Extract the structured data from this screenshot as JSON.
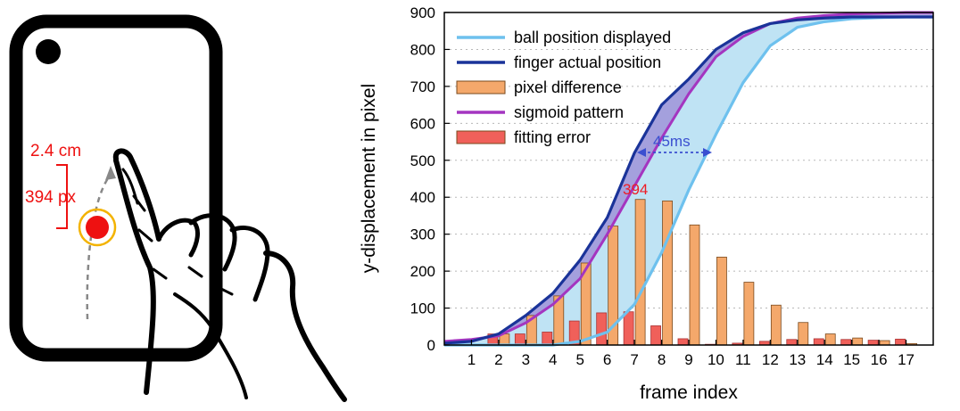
{
  "illustration": {
    "distance_label": "2.4 cm",
    "pixel_label": "394 px"
  },
  "chart_data": {
    "type": "bar",
    "xlabel": "frame index",
    "ylabel": "y-displacement in pixel",
    "ylim": [
      0,
      900
    ],
    "yticks": [
      0,
      100,
      200,
      300,
      400,
      500,
      600,
      700,
      800,
      900
    ],
    "categories": [
      "1",
      "2",
      "3",
      "4",
      "5",
      "6",
      "7",
      "8",
      "9",
      "10",
      "11",
      "12",
      "13",
      "14",
      "15",
      "16",
      "17"
    ],
    "legend_position": "top-left",
    "grid": "horizontal dotted",
    "series": [
      {
        "name": "ball position displayed",
        "kind": "line",
        "color": "#6ec1ee",
        "x": [
          0,
          1,
          2,
          3,
          4,
          5,
          6,
          7,
          8,
          9,
          10,
          11,
          12,
          13,
          14,
          15,
          16,
          17,
          18
        ],
        "values": [
          0,
          0,
          0,
          0,
          0,
          10,
          35,
          110,
          250,
          420,
          570,
          710,
          810,
          860,
          875,
          883,
          886,
          888,
          888
        ]
      },
      {
        "name": "finger actual position",
        "kind": "line",
        "color": "#1a3399",
        "x": [
          0,
          1,
          2,
          3,
          4,
          5,
          6,
          7,
          8,
          9,
          10,
          11,
          12,
          13,
          14,
          15,
          16,
          17,
          18
        ],
        "values": [
          5,
          10,
          30,
          80,
          140,
          230,
          345,
          520,
          650,
          720,
          800,
          845,
          870,
          880,
          885,
          888,
          888,
          888,
          888
        ]
      },
      {
        "name": "pixel difference",
        "kind": "bar",
        "color": "#f4a86b",
        "values": [
          0,
          30,
          80,
          133,
          222,
          322,
          394,
          390,
          325,
          238,
          170,
          108,
          61,
          30,
          19,
          12,
          4
        ]
      },
      {
        "name": "sigmoid pattern",
        "kind": "line",
        "color": "#a435c0",
        "x": [
          0,
          1,
          2,
          3,
          4,
          5,
          6,
          7,
          8,
          9,
          10,
          11,
          12,
          13,
          14,
          15,
          16,
          17,
          18
        ],
        "values": [
          10,
          15,
          25,
          60,
          110,
          180,
          300,
          430,
          560,
          680,
          780,
          835,
          870,
          885,
          892,
          896,
          898,
          900,
          900
        ]
      },
      {
        "name": "fitting error",
        "kind": "bar",
        "color": "#f0605a",
        "values": [
          0,
          30,
          30,
          35,
          65,
          87,
          90,
          52,
          17,
          2,
          5,
          10,
          15,
          17,
          15,
          13,
          16
        ]
      }
    ],
    "annotations": [
      {
        "text": "45ms",
        "color": "#3a4fd0"
      },
      {
        "text": "394",
        "color": "#ee1c25"
      }
    ]
  }
}
